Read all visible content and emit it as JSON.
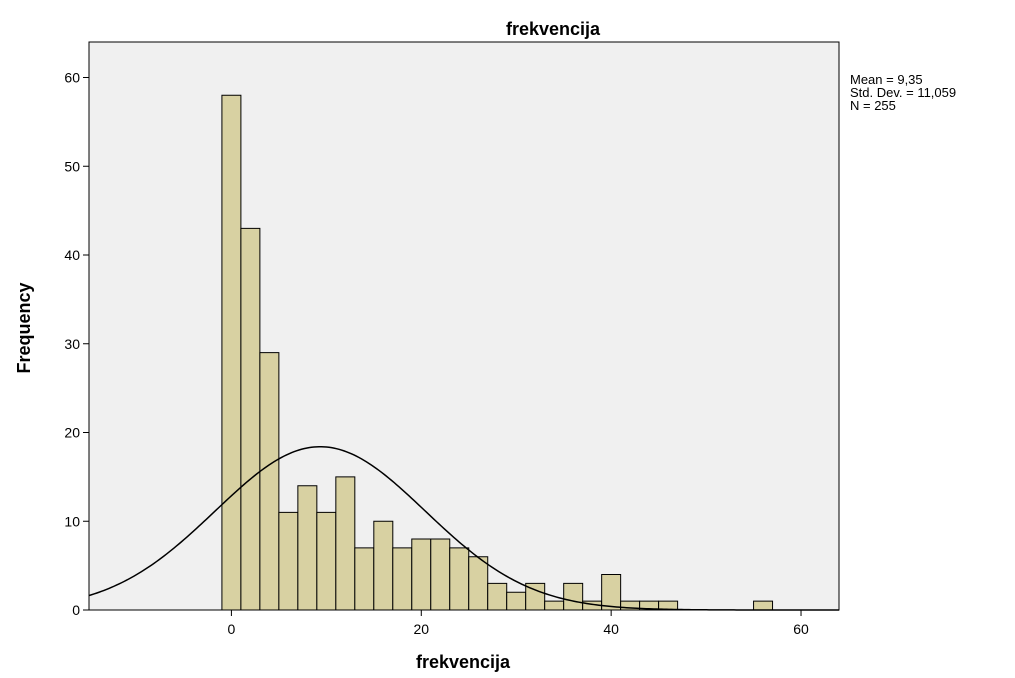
{
  "chart_data": {
    "type": "bar",
    "title": "frekvencija",
    "xlabel": "frekvencija",
    "ylabel": "Frequency",
    "xlim": [
      -15,
      64
    ],
    "ylim": [
      0,
      64
    ],
    "x_ticks": [
      0,
      20,
      40,
      60
    ],
    "y_ticks": [
      0,
      10,
      20,
      30,
      40,
      50,
      60
    ],
    "bin_width": 2,
    "bin_starts": [
      -1,
      1,
      3,
      5,
      7,
      9,
      11,
      13,
      15,
      17,
      19,
      21,
      23,
      25,
      27,
      29,
      31,
      33,
      35,
      37,
      39,
      41,
      43,
      45,
      47,
      49,
      51,
      53,
      55
    ],
    "values": [
      58,
      43,
      29,
      11,
      14,
      11,
      15,
      7,
      10,
      7,
      8,
      8,
      7,
      6,
      3,
      2,
      3,
      1,
      3,
      1,
      4,
      1,
      1,
      1,
      0,
      0,
      0,
      0,
      1
    ],
    "normal_curve": {
      "mean": 9.35,
      "std_dev": 11.059,
      "n": 255
    },
    "stats_text": [
      "Mean = 9,35",
      "Std. Dev. = 11,059",
      "N = 255"
    ],
    "grid": false,
    "colors": {
      "bar_fill": "#d8d1a2",
      "bar_stroke": "#000000",
      "plot_bg": "#f0f0f0",
      "curve": "#000000"
    }
  }
}
